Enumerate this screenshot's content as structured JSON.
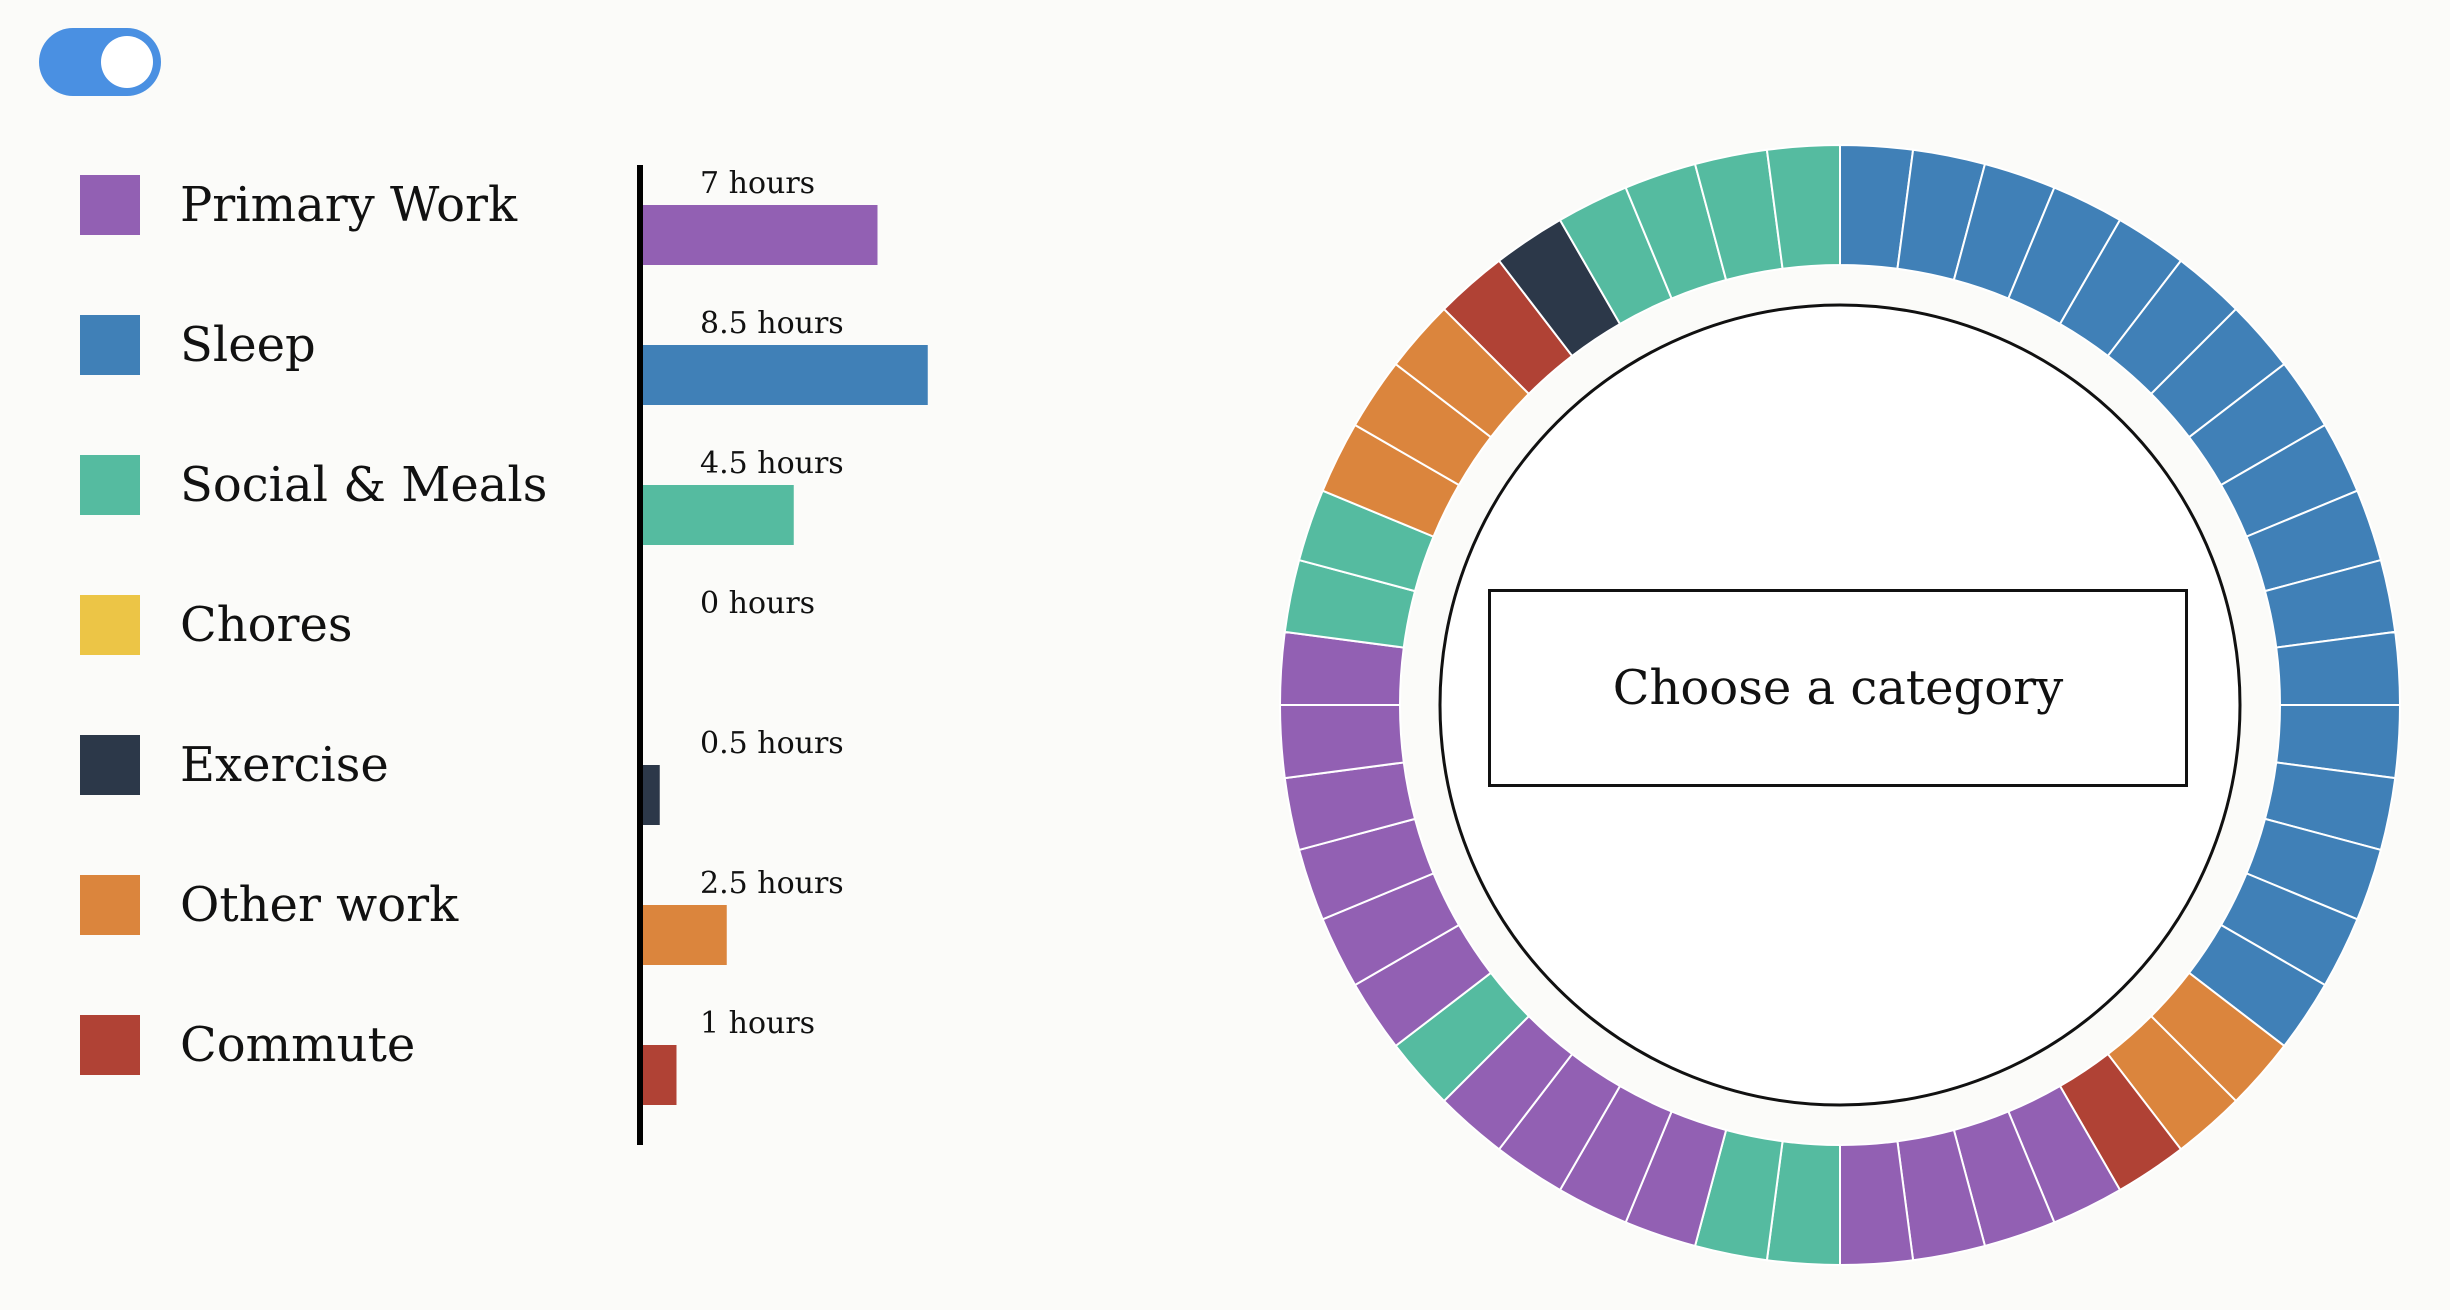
{
  "toggle": {
    "state": "on",
    "color": "#4a90e2"
  },
  "legend": [
    {
      "label": "Primary Work",
      "color": "#9260b3"
    },
    {
      "label": "Sleep",
      "color": "#4080b7"
    },
    {
      "label": "Social & Meals",
      "color": "#55bba0"
    },
    {
      "label": "Chores",
      "color": "#ecc546"
    },
    {
      "label": "Exercise",
      "color": "#2c3849"
    },
    {
      "label": "Other work",
      "color": "#db853d"
    },
    {
      "label": "Commute",
      "color": "#b04235"
    }
  ],
  "chart_data": {
    "type": "bar",
    "orientation": "horizontal",
    "categories": [
      "Primary Work",
      "Sleep",
      "Social & Meals",
      "Chores",
      "Exercise",
      "Other work",
      "Commute"
    ],
    "values": [
      7,
      8.5,
      4.5,
      0,
      0.5,
      2.5,
      1
    ],
    "value_labels": [
      "7 hours",
      "8.5 hours",
      "4.5 hours",
      "0 hours",
      "0.5 hours",
      "2.5 hours",
      "1 hours"
    ],
    "unit": "hours"
  },
  "clock": {
    "slots_per_day": 48,
    "slot_hours": 0.5,
    "start_at_top": true,
    "slots": [
      "Sleep",
      "Sleep",
      "Sleep",
      "Sleep",
      "Sleep",
      "Sleep",
      "Sleep",
      "Sleep",
      "Sleep",
      "Sleep",
      "Sleep",
      "Sleep",
      "Sleep",
      "Sleep",
      "Sleep",
      "Sleep",
      "Sleep",
      "Other work",
      "Other work",
      "Commute",
      "Primary Work",
      "Primary Work",
      "Primary Work",
      "Primary Work",
      "Social & Meals",
      "Social & Meals",
      "Primary Work",
      "Primary Work",
      "Primary Work",
      "Primary Work",
      "Social & Meals",
      "Primary Work",
      "Primary Work",
      "Primary Work",
      "Primary Work",
      "Primary Work",
      "Primary Work",
      "Social & Meals",
      "Social & Meals",
      "Other work",
      "Other work",
      "Other work",
      "Commute",
      "Exercise",
      "Social & Meals",
      "Social & Meals",
      "Social & Meals",
      "Social & Meals"
    ]
  },
  "center": {
    "text": "Choose a category"
  }
}
